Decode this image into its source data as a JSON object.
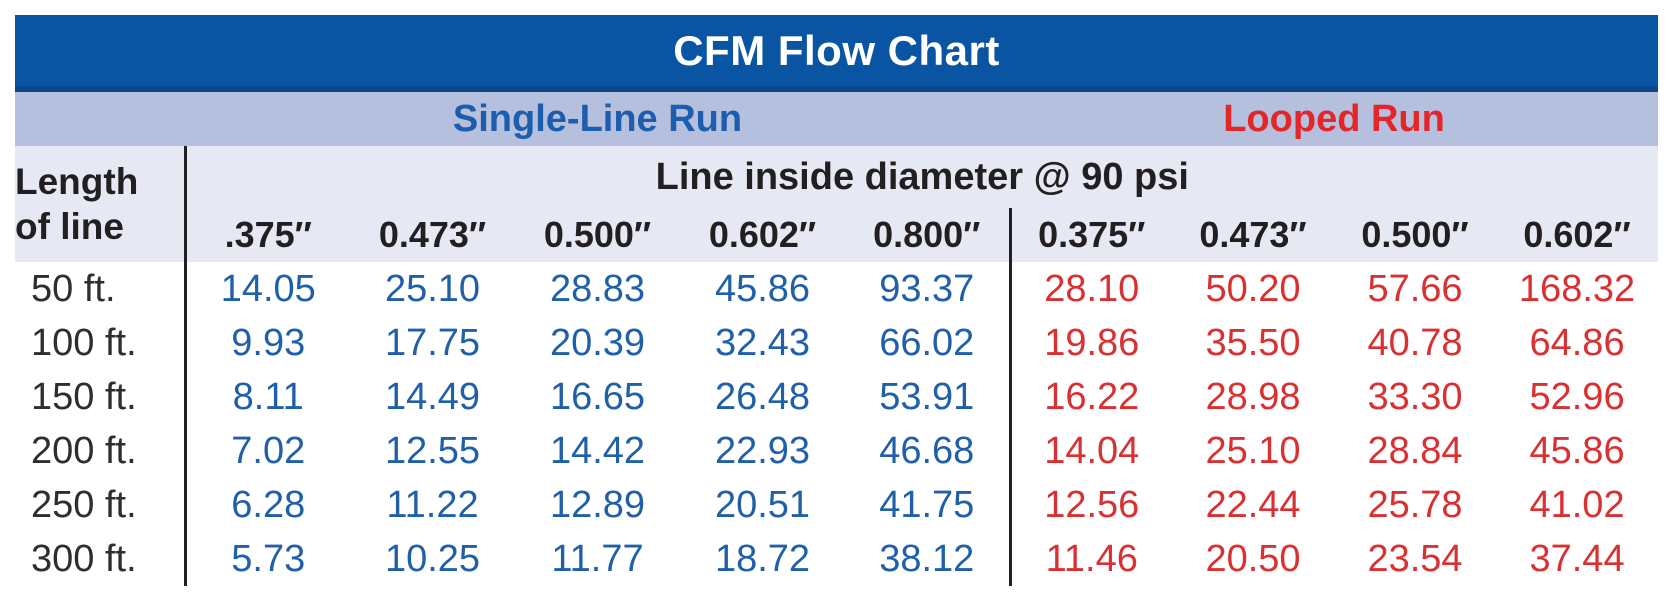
{
  "colors": {
    "title_bar_bg": "#0a55a3",
    "title_bar_edge": "#0a478c",
    "group_band_bg": "#b5c0de",
    "header_bg": "#e6e9f4",
    "single_label_text": "#1d5dad",
    "looped_label_text": "#e52629",
    "single_value_text": "#2060a8",
    "looped_value_text": "#d93032",
    "header_text": "#231f20",
    "divider": "#231f20"
  },
  "chart_data": {
    "type": "table",
    "title": "CFM Flow Chart",
    "column_group_note": "Line inside diameter @ 90 psi",
    "row_header": "Length of line",
    "row_header_lines": [
      "Length",
      "of line"
    ],
    "groups": [
      {
        "name": "Single-Line Run",
        "columns": [
          ".375″",
          "0.473″",
          "0.500″",
          "0.602″",
          "0.800″"
        ]
      },
      {
        "name": "Looped Run",
        "columns": [
          "0.375″",
          "0.473″",
          "0.500″",
          "0.602″"
        ]
      }
    ],
    "rows": [
      {
        "length": "50 ft.",
        "single": [
          "14.05",
          "25.10",
          "28.83",
          "45.86",
          "93.37"
        ],
        "looped": [
          "28.10",
          "50.20",
          "57.66",
          "168.32"
        ]
      },
      {
        "length": "100 ft.",
        "single": [
          "9.93",
          "17.75",
          "20.39",
          "32.43",
          "66.02"
        ],
        "looped": [
          "19.86",
          "35.50",
          "40.78",
          "64.86"
        ]
      },
      {
        "length": "150 ft.",
        "single": [
          "8.11",
          "14.49",
          "16.65",
          "26.48",
          "53.91"
        ],
        "looped": [
          "16.22",
          "28.98",
          "33.30",
          "52.96"
        ]
      },
      {
        "length": "200 ft.",
        "single": [
          "7.02",
          "12.55",
          "14.42",
          "22.93",
          "46.68"
        ],
        "looped": [
          "14.04",
          "25.10",
          "28.84",
          "45.86"
        ]
      },
      {
        "length": "250 ft.",
        "single": [
          "6.28",
          "11.22",
          "12.89",
          "20.51",
          "41.75"
        ],
        "looped": [
          "12.56",
          "22.44",
          "25.78",
          "41.02"
        ]
      },
      {
        "length": "300 ft.",
        "single": [
          "5.73",
          "10.25",
          "11.77",
          "18.72",
          "38.12"
        ],
        "looped": [
          "11.46",
          "20.50",
          "23.54",
          "37.44"
        ]
      }
    ]
  }
}
